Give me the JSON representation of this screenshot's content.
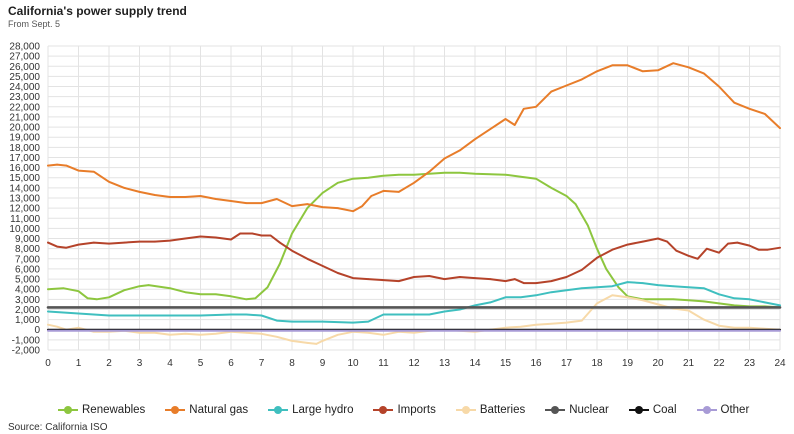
{
  "header": {
    "title": "California's power supply trend",
    "subtitle": "From Sept. 5"
  },
  "footer": {
    "source": "Source: California ISO"
  },
  "chart_data": {
    "type": "line",
    "title": "California's power supply trend",
    "subtitle": "From Sept. 5",
    "xlabel": "",
    "ylabel": "",
    "xlim": [
      0,
      24
    ],
    "ylim": [
      -2000,
      28000
    ],
    "x_ticks": [
      0,
      1,
      2,
      3,
      4,
      5,
      6,
      7,
      8,
      9,
      10,
      11,
      12,
      13,
      14,
      15,
      16,
      17,
      18,
      19,
      20,
      21,
      22,
      23,
      24
    ],
    "y_ticks": [
      -2000,
      -1000,
      0,
      1000,
      2000,
      3000,
      4000,
      5000,
      6000,
      7000,
      8000,
      9000,
      10000,
      11000,
      12000,
      13000,
      14000,
      15000,
      16000,
      17000,
      18000,
      19000,
      20000,
      21000,
      22000,
      23000,
      24000,
      25000,
      26000,
      27000,
      28000
    ],
    "y_tick_labels": [
      "-2,000",
      "-1,000",
      "0",
      "1,000",
      "2,000",
      "3,000",
      "4,000",
      "5,000",
      "6,000",
      "7,000",
      "8,000",
      "9,000",
      "10,000",
      "11,000",
      "12,000",
      "13,000",
      "14,000",
      "15,000",
      "16,000",
      "17,000",
      "18,000",
      "19,000",
      "20,000",
      "21,000",
      "22,000",
      "23,000",
      "24,000",
      "25,000",
      "26,000",
      "27,000",
      "28,000"
    ],
    "grid": true,
    "legend_position": "bottom",
    "series": [
      {
        "name": "Renewables",
        "color": "#8dc63f",
        "points": [
          [
            0,
            4000
          ],
          [
            0.5,
            4100
          ],
          [
            1,
            3800
          ],
          [
            1.3,
            3100
          ],
          [
            1.6,
            3000
          ],
          [
            2,
            3200
          ],
          [
            2.5,
            3900
          ],
          [
            3,
            4300
          ],
          [
            3.3,
            4400
          ],
          [
            4,
            4100
          ],
          [
            4.5,
            3700
          ],
          [
            5,
            3500
          ],
          [
            5.5,
            3500
          ],
          [
            6,
            3300
          ],
          [
            6.5,
            3000
          ],
          [
            6.8,
            3100
          ],
          [
            7.2,
            4200
          ],
          [
            7.6,
            6500
          ],
          [
            8,
            9500
          ],
          [
            8.5,
            12000
          ],
          [
            9,
            13500
          ],
          [
            9.5,
            14500
          ],
          [
            10,
            14900
          ],
          [
            10.5,
            15000
          ],
          [
            11,
            15200
          ],
          [
            11.5,
            15300
          ],
          [
            12,
            15300
          ],
          [
            12.5,
            15400
          ],
          [
            13,
            15500
          ],
          [
            13.5,
            15500
          ],
          [
            14,
            15400
          ],
          [
            14.5,
            15350
          ],
          [
            15,
            15300
          ],
          [
            15.5,
            15100
          ],
          [
            16,
            14900
          ],
          [
            16.5,
            14000
          ],
          [
            17,
            13200
          ],
          [
            17.3,
            12400
          ],
          [
            17.7,
            10300
          ],
          [
            18,
            8000
          ],
          [
            18.3,
            6000
          ],
          [
            18.7,
            4200
          ],
          [
            19,
            3300
          ],
          [
            19.5,
            3000
          ],
          [
            20,
            3000
          ],
          [
            20.5,
            3000
          ],
          [
            21,
            2900
          ],
          [
            21.5,
            2800
          ],
          [
            22,
            2600
          ],
          [
            22.5,
            2400
          ],
          [
            23,
            2300
          ],
          [
            23.5,
            2300
          ],
          [
            24,
            2200
          ]
        ]
      },
      {
        "name": "Natural gas",
        "color": "#e87d2a",
        "points": [
          [
            0,
            16200
          ],
          [
            0.3,
            16300
          ],
          [
            0.6,
            16200
          ],
          [
            1,
            15700
          ],
          [
            1.5,
            15600
          ],
          [
            2,
            14600
          ],
          [
            2.5,
            14000
          ],
          [
            3,
            13600
          ],
          [
            3.5,
            13300
          ],
          [
            4,
            13100
          ],
          [
            4.5,
            13100
          ],
          [
            5,
            13200
          ],
          [
            5.5,
            12900
          ],
          [
            6,
            12700
          ],
          [
            6.5,
            12500
          ],
          [
            7,
            12500
          ],
          [
            7.5,
            12900
          ],
          [
            8,
            12200
          ],
          [
            8.5,
            12400
          ],
          [
            9,
            12100
          ],
          [
            9.5,
            12000
          ],
          [
            10,
            11700
          ],
          [
            10.3,
            12200
          ],
          [
            10.6,
            13200
          ],
          [
            11,
            13700
          ],
          [
            11.5,
            13600
          ],
          [
            12,
            14500
          ],
          [
            12.5,
            15600
          ],
          [
            13,
            16900
          ],
          [
            13.5,
            17700
          ],
          [
            14,
            18800
          ],
          [
            14.5,
            19800
          ],
          [
            15,
            20800
          ],
          [
            15.3,
            20200
          ],
          [
            15.6,
            21800
          ],
          [
            16,
            22000
          ],
          [
            16.5,
            23500
          ],
          [
            17,
            24100
          ],
          [
            17.5,
            24700
          ],
          [
            18,
            25500
          ],
          [
            18.5,
            26100
          ],
          [
            19,
            26100
          ],
          [
            19.5,
            25500
          ],
          [
            20,
            25600
          ],
          [
            20.5,
            26300
          ],
          [
            21,
            25900
          ],
          [
            21.5,
            25300
          ],
          [
            22,
            24000
          ],
          [
            22.5,
            22400
          ],
          [
            23,
            21800
          ],
          [
            23.5,
            21300
          ],
          [
            24,
            19900
          ]
        ]
      },
      {
        "name": "Large hydro",
        "color": "#3fbfbf",
        "points": [
          [
            0,
            1800
          ],
          [
            0.5,
            1700
          ],
          [
            1,
            1600
          ],
          [
            1.5,
            1500
          ],
          [
            2,
            1400
          ],
          [
            3,
            1400
          ],
          [
            4,
            1400
          ],
          [
            5,
            1400
          ],
          [
            6,
            1500
          ],
          [
            6.5,
            1500
          ],
          [
            7,
            1400
          ],
          [
            7.5,
            900
          ],
          [
            8,
            800
          ],
          [
            9,
            800
          ],
          [
            10,
            700
          ],
          [
            10.5,
            800
          ],
          [
            11,
            1500
          ],
          [
            12,
            1500
          ],
          [
            12.5,
            1500
          ],
          [
            13,
            1800
          ],
          [
            13.5,
            2000
          ],
          [
            14,
            2400
          ],
          [
            14.5,
            2700
          ],
          [
            15,
            3200
          ],
          [
            15.5,
            3200
          ],
          [
            16,
            3400
          ],
          [
            16.5,
            3700
          ],
          [
            17,
            3900
          ],
          [
            17.5,
            4100
          ],
          [
            18,
            4200
          ],
          [
            18.5,
            4300
          ],
          [
            19,
            4700
          ],
          [
            19.5,
            4600
          ],
          [
            20,
            4400
          ],
          [
            20.5,
            4300
          ],
          [
            21,
            4200
          ],
          [
            21.5,
            4100
          ],
          [
            22,
            3500
          ],
          [
            22.5,
            3100
          ],
          [
            23,
            3000
          ],
          [
            23.5,
            2700
          ],
          [
            24,
            2400
          ]
        ]
      },
      {
        "name": "Imports",
        "color": "#b5432a",
        "points": [
          [
            0,
            8600
          ],
          [
            0.3,
            8200
          ],
          [
            0.6,
            8100
          ],
          [
            1,
            8400
          ],
          [
            1.5,
            8600
          ],
          [
            2,
            8500
          ],
          [
            2.5,
            8600
          ],
          [
            3,
            8700
          ],
          [
            3.5,
            8700
          ],
          [
            4,
            8800
          ],
          [
            4.5,
            9000
          ],
          [
            5,
            9200
          ],
          [
            5.5,
            9100
          ],
          [
            6,
            8900
          ],
          [
            6.3,
            9500
          ],
          [
            6.7,
            9500
          ],
          [
            7,
            9300
          ],
          [
            7.3,
            9300
          ],
          [
            7.6,
            8600
          ],
          [
            8,
            7800
          ],
          [
            8.5,
            7000
          ],
          [
            9,
            6300
          ],
          [
            9.5,
            5600
          ],
          [
            10,
            5100
          ],
          [
            10.5,
            5000
          ],
          [
            11,
            4900
          ],
          [
            11.5,
            4800
          ],
          [
            12,
            5200
          ],
          [
            12.5,
            5300
          ],
          [
            13,
            5000
          ],
          [
            13.5,
            5200
          ],
          [
            14,
            5100
          ],
          [
            14.5,
            5000
          ],
          [
            15,
            4800
          ],
          [
            15.3,
            5000
          ],
          [
            15.6,
            4600
          ],
          [
            16,
            4600
          ],
          [
            16.5,
            4800
          ],
          [
            17,
            5200
          ],
          [
            17.5,
            5900
          ],
          [
            18,
            7100
          ],
          [
            18.5,
            7900
          ],
          [
            19,
            8400
          ],
          [
            19.5,
            8700
          ],
          [
            20,
            9000
          ],
          [
            20.3,
            8700
          ],
          [
            20.6,
            7800
          ],
          [
            21,
            7300
          ],
          [
            21.3,
            7000
          ],
          [
            21.6,
            8000
          ],
          [
            22,
            7600
          ],
          [
            22.3,
            8500
          ],
          [
            22.6,
            8600
          ],
          [
            23,
            8300
          ],
          [
            23.3,
            7900
          ],
          [
            23.6,
            7900
          ],
          [
            24,
            8100
          ]
        ]
      },
      {
        "name": "Batteries",
        "color": "#f7d9a8",
        "points": [
          [
            0,
            500
          ],
          [
            0.3,
            300
          ],
          [
            0.6,
            0
          ],
          [
            1,
            200
          ],
          [
            1.5,
            -200
          ],
          [
            2,
            -200
          ],
          [
            2.5,
            -100
          ],
          [
            3,
            -300
          ],
          [
            3.5,
            -300
          ],
          [
            4,
            -500
          ],
          [
            4.5,
            -400
          ],
          [
            5,
            -500
          ],
          [
            5.5,
            -400
          ],
          [
            6,
            -200
          ],
          [
            6.5,
            -300
          ],
          [
            7,
            -400
          ],
          [
            7.5,
            -700
          ],
          [
            8,
            -1100
          ],
          [
            8.5,
            -1300
          ],
          [
            8.8,
            -1400
          ],
          [
            9,
            -1100
          ],
          [
            9.5,
            -500
          ],
          [
            10,
            -200
          ],
          [
            10.5,
            -300
          ],
          [
            11,
            -500
          ],
          [
            11.5,
            -200
          ],
          [
            12,
            -300
          ],
          [
            12.5,
            -100
          ],
          [
            13,
            0
          ],
          [
            13.5,
            -100
          ],
          [
            14,
            -200
          ],
          [
            14.5,
            0
          ],
          [
            15,
            200
          ],
          [
            15.5,
            300
          ],
          [
            16,
            500
          ],
          [
            16.5,
            600
          ],
          [
            17,
            700
          ],
          [
            17.5,
            900
          ],
          [
            18,
            2600
          ],
          [
            18.5,
            3400
          ],
          [
            19,
            3200
          ],
          [
            19.5,
            2900
          ],
          [
            20,
            2500
          ],
          [
            20.5,
            2100
          ],
          [
            21,
            1900
          ],
          [
            21.5,
            1000
          ],
          [
            22,
            400
          ],
          [
            22.5,
            200
          ],
          [
            23,
            200
          ],
          [
            23.5,
            100
          ],
          [
            24,
            0
          ]
        ]
      },
      {
        "name": "Nuclear",
        "color": "#555555",
        "points": [
          [
            0,
            2200
          ],
          [
            24,
            2200
          ]
        ]
      },
      {
        "name": "Coal",
        "color": "#111111",
        "points": [
          [
            0,
            0
          ],
          [
            24,
            0
          ]
        ]
      },
      {
        "name": "Other",
        "color": "#a89bd6",
        "points": [
          [
            0,
            -100
          ],
          [
            24,
            -100
          ]
        ]
      }
    ]
  }
}
